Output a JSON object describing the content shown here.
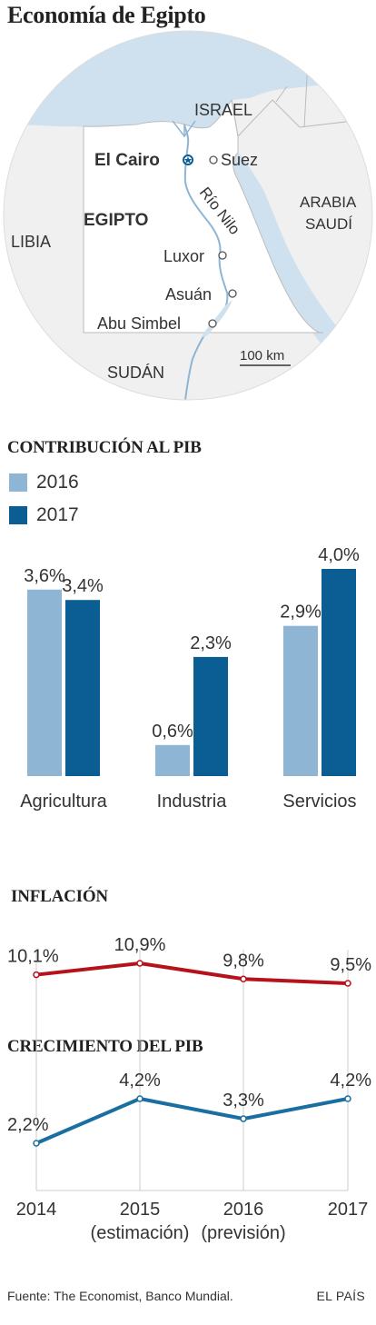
{
  "title": "Economía de Egipto",
  "map": {
    "labels": {
      "israel": "ISRAEL",
      "el_cairo": "El Cairo",
      "suez": "Suez",
      "arabia": "ARABIA",
      "saudi": "SAUDÍ",
      "libia": "LIBIA",
      "egipto": "EGIPTO",
      "rio_nilo": "Río Nilo",
      "luxor": "Luxor",
      "asuan": "Asuán",
      "abu_simbel": "Abu Simbel",
      "sudan": "SUDÁN",
      "scale": "100 km"
    }
  },
  "colors": {
    "light_blue": "#8fb5d4",
    "dark_blue": "#0a5e94",
    "red": "#b5121b",
    "blue_line": "#1a6ea0",
    "land": "#f0f0f0",
    "egypt": "#ffffff",
    "sea": "#cfe1ee"
  },
  "chart_data": [
    {
      "type": "bar",
      "title": "CONTRIBUCIÓN AL PIB",
      "categories": [
        "Agricultura",
        "Industria",
        "Servicios"
      ],
      "series": [
        {
          "name": "2016",
          "values": [
            3.6,
            0.6,
            2.9
          ],
          "labels": [
            "3,6%",
            "0,6%",
            "2,9%"
          ]
        },
        {
          "name": "2017",
          "values": [
            3.4,
            2.3,
            4.0
          ],
          "labels": [
            "3,4%",
            "2,3%",
            "4,0%"
          ]
        }
      ],
      "ylim": [
        0,
        4.0
      ]
    },
    {
      "type": "line",
      "title": "INFLACIÓN",
      "x": [
        "2014",
        "2015",
        "2016",
        "2017"
      ],
      "values": [
        10.1,
        10.9,
        9.8,
        9.5
      ],
      "labels": [
        "10,1%",
        "10,9%",
        "9,8%",
        "9,5%"
      ]
    },
    {
      "type": "line",
      "title": "CRECIMIENTO DEL PIB",
      "x": [
        "2014",
        "2015",
        "2016",
        "2017"
      ],
      "x_sub": [
        "",
        "(estimación)",
        "(previsión)",
        ""
      ],
      "values": [
        2.2,
        4.2,
        3.3,
        4.2
      ],
      "labels": [
        "2,2%",
        "4,2%",
        "3,3%",
        "4,2%"
      ]
    }
  ],
  "footer": {
    "source": "Fuente: The Economist, Banco Mundial.",
    "brand": "EL PAÍS"
  }
}
